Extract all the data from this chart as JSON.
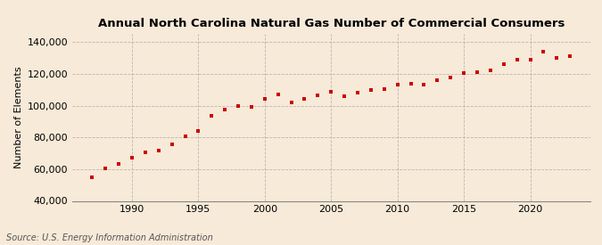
{
  "title": "Annual North Carolina Natural Gas Number of Commercial Consumers",
  "ylabel": "Number of Elements",
  "source": "Source: U.S. Energy Information Administration",
  "background_color": "#f7ead8",
  "plot_background_color": "#f7ead8",
  "marker_color": "#cc0000",
  "marker": "s",
  "marker_size": 3.5,
  "xlim": [
    1985.5,
    2024.5
  ],
  "ylim": [
    40000,
    145000
  ],
  "yticks": [
    40000,
    60000,
    80000,
    100000,
    120000,
    140000
  ],
  "ytick_labels": [
    "40,000",
    "60,000",
    "80,000",
    "100,000",
    "120,000",
    "140,000"
  ],
  "xticks": [
    1990,
    1995,
    2000,
    2005,
    2010,
    2015,
    2020
  ],
  "grid_color": "#aaaaaa",
  "grid_style": "--",
  "years": [
    1987,
    1988,
    1989,
    1990,
    1991,
    1992,
    1993,
    1994,
    1995,
    1996,
    1997,
    1998,
    1999,
    2000,
    2001,
    2002,
    2003,
    2004,
    2005,
    2006,
    2007,
    2008,
    2009,
    2010,
    2011,
    2012,
    2013,
    2014,
    2015,
    2016,
    2017,
    2018,
    2019,
    2020,
    2021,
    2022,
    2023
  ],
  "values": [
    55000,
    60500,
    63500,
    67500,
    70500,
    72000,
    75500,
    80500,
    84000,
    93500,
    97500,
    100000,
    99500,
    104500,
    107000,
    102000,
    104500,
    106500,
    109000,
    106000,
    108000,
    110000,
    110500,
    113000,
    114000,
    113000,
    116000,
    117500,
    120500,
    121000,
    122500,
    126000,
    129000,
    129000,
    134000,
    130000,
    131000
  ],
  "title_fontsize": 9.5,
  "tick_fontsize": 8,
  "ylabel_fontsize": 8,
  "source_fontsize": 7
}
